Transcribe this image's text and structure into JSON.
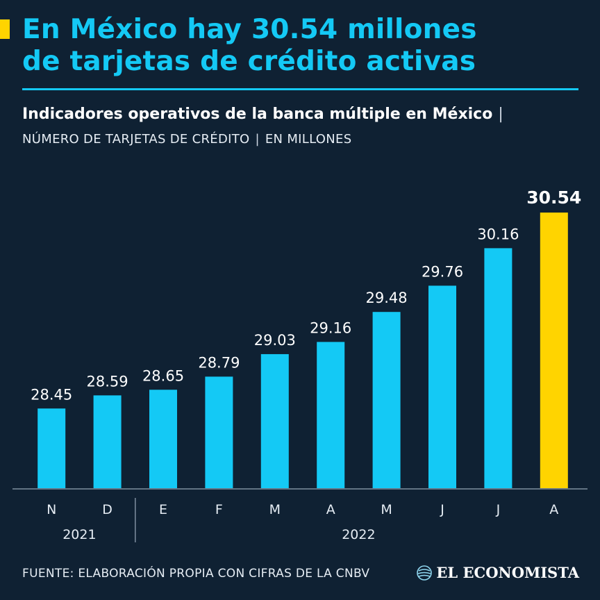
{
  "headline": {
    "line1": "En México hay 30.54 millones",
    "line2": "de tarjetas de crédito activas"
  },
  "subtitle": {
    "text": "Indicadores operativos de la banca múltiple en México",
    "separator": "|"
  },
  "subline": {
    "part1": "NÚMERO DE TARJETAS DE CRÉDITO",
    "separator": "|",
    "part2": "EN MILLONES"
  },
  "source": "FUENTE: ELABORACIÓN PROPIA CON CIFRAS DE LA CNBV",
  "brand": {
    "name": "EL ECONOMISTA",
    "icon": "globe-logo-icon"
  },
  "colors": {
    "background": "#0f2133",
    "bar": "#14c9f5",
    "highlight_bar": "#ffd400",
    "headline": "#14c9f5"
  },
  "chart_data": {
    "type": "bar",
    "title": "Indicadores operativos de la banca múltiple en México",
    "ylabel": "Número de tarjetas de crédito (millones)",
    "xlabel": "",
    "categories": [
      "N",
      "D",
      "E",
      "F",
      "M",
      "A",
      "M",
      "J",
      "J",
      "A"
    ],
    "values": [
      28.45,
      28.59,
      28.65,
      28.79,
      29.03,
      29.16,
      29.48,
      29.76,
      30.16,
      30.54
    ],
    "value_labels": [
      "28.45",
      "28.59",
      "28.65",
      "28.79",
      "29.03",
      "29.16",
      "29.48",
      "29.76",
      "30.16",
      "30.54"
    ],
    "highlight_index": 9,
    "year_groups": [
      {
        "label": "2021",
        "start": 0,
        "end": 1
      },
      {
        "label": "2022",
        "start": 2,
        "end": 9
      }
    ],
    "ylim": [
      27.6,
      30.6
    ],
    "grid": false
  }
}
